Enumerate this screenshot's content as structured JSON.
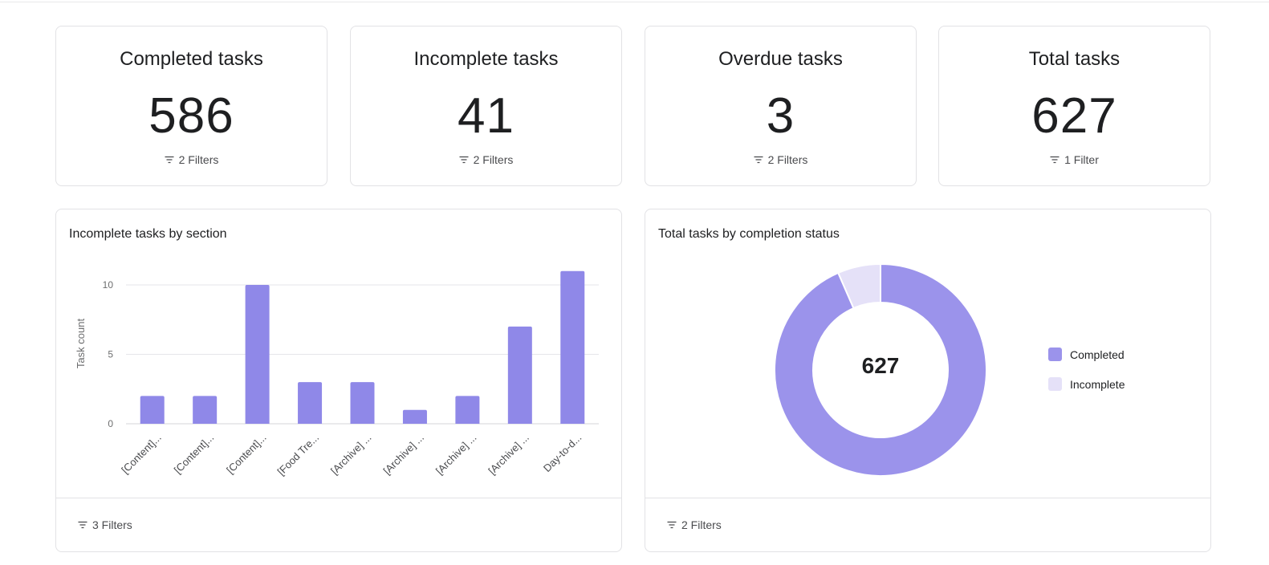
{
  "stats": [
    {
      "title": "Completed tasks",
      "value": "586",
      "filters": "2 Filters"
    },
    {
      "title": "Incomplete tasks",
      "value": "41",
      "filters": "2 Filters"
    },
    {
      "title": "Overdue tasks",
      "value": "3",
      "filters": "2 Filters"
    },
    {
      "title": "Total tasks",
      "value": "627",
      "filters": "1 Filter"
    }
  ],
  "bar_panel": {
    "title": "Incomplete tasks by section",
    "filters": "3 Filters"
  },
  "donut_panel": {
    "title": "Total tasks by completion status",
    "filters": "2 Filters",
    "center_label": "627"
  },
  "colors": {
    "bar": "#8f88e8",
    "completed": "#9b93eb",
    "incomplete": "#e5e1f8",
    "grid": "#e6e6ea"
  },
  "chart_data": [
    {
      "type": "bar",
      "title": "Incomplete tasks by section",
      "xlabel": "",
      "ylabel": "Task count",
      "ylim": [
        0,
        11
      ],
      "yticks": [
        0,
        5,
        10
      ],
      "grid": true,
      "categories": [
        "[Content]...",
        "[Content]...",
        "[Content]...",
        "[Food Tre...",
        "[Archive] ...",
        "[Archive] ...",
        "[Archive] ...",
        "[Archive] ...",
        "Day-to-d..."
      ],
      "values": [
        2,
        2,
        10,
        3,
        3,
        1,
        2,
        7,
        11
      ]
    },
    {
      "type": "pie",
      "title": "Total tasks by completion status",
      "labels": [
        "Completed",
        "Incomplete"
      ],
      "values": [
        586,
        41
      ],
      "total": "627",
      "legend": "right"
    }
  ]
}
